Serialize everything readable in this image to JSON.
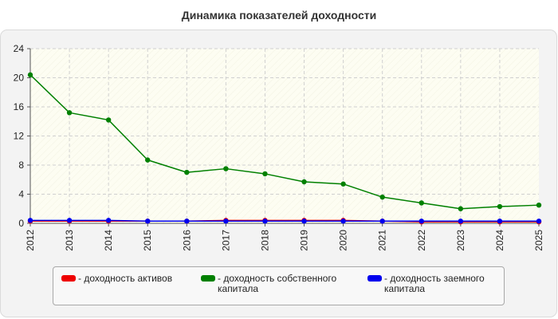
{
  "title": "Динамика показателей доходности",
  "chart_data": {
    "type": "line",
    "categories": [
      "2012",
      "2013",
      "2014",
      "2015",
      "2016",
      "2017",
      "2018",
      "2019",
      "2020",
      "2021",
      "2022",
      "2023",
      "2024",
      "2025"
    ],
    "ylim": [
      0,
      24
    ],
    "yticks": [
      0,
      4,
      8,
      12,
      16,
      20,
      24
    ],
    "grid": true,
    "legend_position": "bottom",
    "series": [
      {
        "name": "- доходность активов",
        "color": "#ee0000",
        "values": [
          0.3,
          0.3,
          0.3,
          0.3,
          0.3,
          0.4,
          0.4,
          0.4,
          0.4,
          0.3,
          0.2,
          0.2,
          0.2,
          0.2
        ]
      },
      {
        "name": "- доходность собственного капитала",
        "color": "#008000",
        "values": [
          20.4,
          15.2,
          14.2,
          8.7,
          7.0,
          7.5,
          6.8,
          5.7,
          5.4,
          3.6,
          2.8,
          2.0,
          2.3,
          2.5
        ]
      },
      {
        "name": "- доходность заемного капитала",
        "color": "#0000ee",
        "values": [
          0.4,
          0.4,
          0.4,
          0.3,
          0.3,
          0.3,
          0.3,
          0.3,
          0.3,
          0.3,
          0.3,
          0.3,
          0.3,
          0.3
        ]
      }
    ]
  }
}
